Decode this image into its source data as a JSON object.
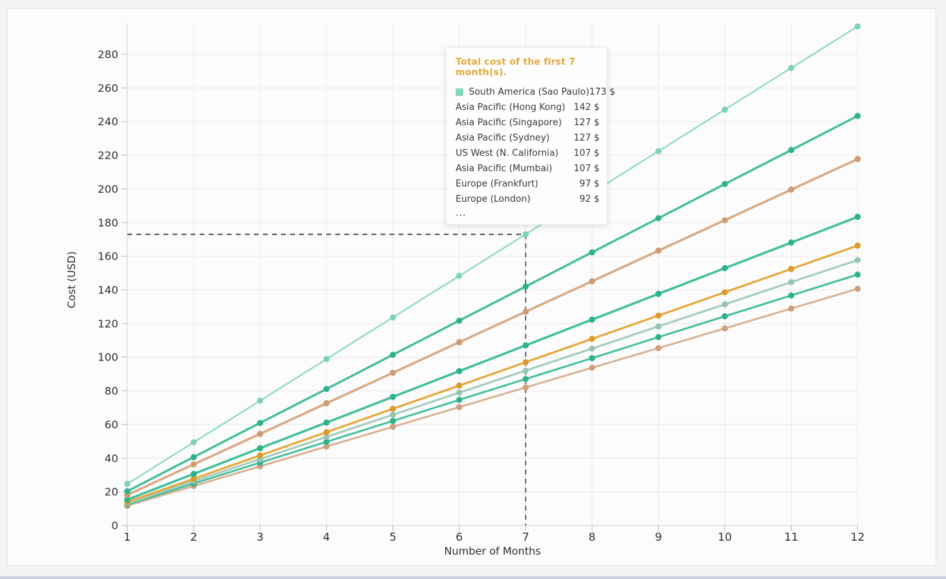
{
  "page": {
    "background": "#f4f3f5",
    "card_background": "#fdfcfd",
    "card_border": "#e3e1e4",
    "bottom_bar_color": "#c8cedb",
    "grid_color": "#eae8ea",
    "axis_color": "#d2d0d3",
    "tick_color": "#b5b3b6",
    "label_color": "#2f2d31",
    "crosshair_color": "#4f4d53"
  },
  "chart_data": {
    "type": "line",
    "title": "",
    "xlabel": "Number of Months",
    "ylabel": "Cost (USD)",
    "x": [
      1,
      2,
      3,
      4,
      5,
      6,
      7,
      8,
      9,
      10,
      11,
      12
    ],
    "yticks": [
      0,
      20,
      40,
      60,
      80,
      100,
      120,
      140,
      160,
      180,
      200,
      220,
      240,
      260,
      280
    ],
    "xlim": [
      1,
      12
    ],
    "ylim": [
      0,
      300
    ],
    "grid": true,
    "legend_position": "tooltip-only",
    "crosshair": {
      "x": 7,
      "y": 173
    },
    "series": [
      {
        "name": "South America (Sao Paulo)",
        "color": "#8cdabf",
        "marker_color": "#7cd2b3",
        "line_width": 2.2,
        "total_first_7_months": 173,
        "values": [
          24.7,
          49.4,
          74.1,
          98.9,
          123.6,
          148.3,
          173.0,
          197.7,
          222.4,
          247.1,
          271.9,
          296.6
        ]
      },
      {
        "name": "Asia Pacific (Hong Kong)",
        "color": "#44bf9c",
        "marker_color": "#2db28c",
        "line_width": 3.2,
        "total_first_7_months": 142,
        "values": [
          20.3,
          40.6,
          60.9,
          81.1,
          101.4,
          121.7,
          142.0,
          162.3,
          182.6,
          202.9,
          223.1,
          243.4
        ]
      },
      {
        "name": "Asia Pacific (Singapore)",
        "color": "#d9aa82",
        "marker_color": "#cf9c72",
        "line_width": 3.2,
        "total_first_7_months": 127,
        "values": [
          18.1,
          36.3,
          54.4,
          72.6,
          90.7,
          108.9,
          127.0,
          145.1,
          163.3,
          181.4,
          199.6,
          217.7
        ]
      },
      {
        "name": "Asia Pacific (Sydney)",
        "color": "#d9aa82",
        "marker_color": "#cf9c72",
        "line_width": 3.2,
        "total_first_7_months": 127,
        "values": [
          18.1,
          36.3,
          54.4,
          72.6,
          90.7,
          108.9,
          127.0,
          145.1,
          163.3,
          181.4,
          199.6,
          217.7
        ]
      },
      {
        "name": "US West (N. California)",
        "color": "#44bf9c",
        "marker_color": "#2db28c",
        "line_width": 3.2,
        "total_first_7_months": 107,
        "values": [
          15.3,
          30.6,
          45.9,
          61.1,
          76.4,
          91.7,
          107.0,
          122.3,
          137.6,
          152.9,
          168.1,
          183.4
        ]
      },
      {
        "name": "Asia Pacific (Mumbai)",
        "color": "#44bf9c",
        "marker_color": "#2db28c",
        "line_width": 3.2,
        "total_first_7_months": 107,
        "values": [
          15.3,
          30.6,
          45.9,
          61.1,
          76.4,
          91.7,
          107.0,
          122.3,
          137.6,
          152.9,
          168.1,
          183.4
        ]
      },
      {
        "name": "Europe (Frankfurt)",
        "color": "#e6a73c",
        "marker_color": "#dc9a28",
        "line_width": 3.0,
        "total_first_7_months": 97,
        "values": [
          13.9,
          27.7,
          41.6,
          55.4,
          69.3,
          83.1,
          97.0,
          110.9,
          124.7,
          138.6,
          152.4,
          166.3
        ]
      },
      {
        "name": "Europe (London)",
        "color": "#a6cdbd",
        "marker_color": "#97c3b1",
        "line_width": 3.0,
        "total_first_7_months": 92,
        "values": [
          13.1,
          26.3,
          39.4,
          52.6,
          65.7,
          78.9,
          92.0,
          105.1,
          118.3,
          131.4,
          144.6,
          157.7
        ]
      },
      {
        "name": "…",
        "color": "#44bf9c",
        "marker_color": "#2db28c",
        "line_width": 2.8,
        "total_first_7_months": 87,
        "values": [
          12.4,
          24.9,
          37.3,
          49.7,
          62.1,
          74.6,
          87.0,
          99.4,
          111.9,
          124.3,
          136.7,
          149.1
        ]
      },
      {
        "name": "…",
        "color": "#d9b191",
        "marker_color": "#cda07c",
        "line_width": 2.8,
        "total_first_7_months": 82,
        "values": [
          11.7,
          23.4,
          35.1,
          46.9,
          58.6,
          70.3,
          82.0,
          93.7,
          105.4,
          117.1,
          128.9,
          140.6
        ]
      }
    ]
  },
  "tooltip": {
    "title": "Total cost of the first 7 month(s).",
    "title_color": "#e2a93c",
    "ellipsis": "...",
    "rows": [
      {
        "label": "South America (Sao Paulo)",
        "value": "173 $",
        "marker_color": "#7fd9bc"
      },
      {
        "label": "Asia Pacific (Hong Kong)",
        "value": "142 $"
      },
      {
        "label": "Asia Pacific (Singapore)",
        "value": "127 $"
      },
      {
        "label": "Asia Pacific (Sydney)",
        "value": "127 $"
      },
      {
        "label": "US West (N. California)",
        "value": "107 $"
      },
      {
        "label": "Asia Pacific (Mumbai)",
        "value": "107 $"
      },
      {
        "label": "Europe (Frankfurt)",
        "value": "97 $"
      },
      {
        "label": "Europe (London)",
        "value": "92 $"
      }
    ]
  }
}
